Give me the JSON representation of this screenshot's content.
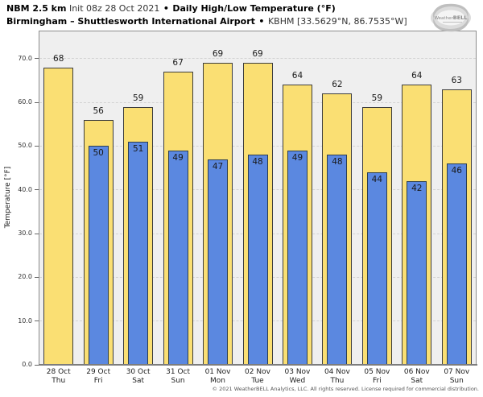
{
  "header": {
    "model": "NBM 2.5 km",
    "init": "Init 08z 28 Oct 2021",
    "sep": "•",
    "product": "Daily High/Low Temperature (°F)",
    "station": "Birmingham – Shuttlesworth International Airport",
    "code": "KBHM [33.5629°N, 86.7535°W]",
    "logo_text_small": "Weather",
    "logo_text_big": "BELL"
  },
  "chart_data": {
    "type": "bar",
    "title": "Daily High/Low Temperature (°F)",
    "subtitle": "Birmingham – Shuttlesworth International Airport • KBHM",
    "ylabel": "Temperature [°F]",
    "ylim": [
      0,
      76.4
    ],
    "grid": "horizontal-dashed",
    "legend": "none",
    "yticks": [
      {
        "v": 70,
        "label": "70.0"
      },
      {
        "v": 60,
        "label": "60.0"
      },
      {
        "v": 50,
        "label": "50.0"
      },
      {
        "v": 40,
        "label": "40.0"
      },
      {
        "v": 30,
        "label": "30.0"
      },
      {
        "v": 20,
        "label": "20.0"
      },
      {
        "v": 10,
        "label": "10.0"
      },
      {
        "v": 0,
        "label": "0.0"
      }
    ],
    "categories": [
      {
        "date": "28 Oct",
        "day": "Thu"
      },
      {
        "date": "29 Oct",
        "day": "Fri"
      },
      {
        "date": "30 Oct",
        "day": "Sat"
      },
      {
        "date": "31 Oct",
        "day": "Sun"
      },
      {
        "date": "01 Nov",
        "day": "Mon"
      },
      {
        "date": "02 Nov",
        "day": "Tue"
      },
      {
        "date": "03 Nov",
        "day": "Wed"
      },
      {
        "date": "04 Nov",
        "day": "Thu"
      },
      {
        "date": "05 Nov",
        "day": "Fri"
      },
      {
        "date": "06 Nov",
        "day": "Sat"
      },
      {
        "date": "07 Nov",
        "day": "Sun"
      }
    ],
    "series": [
      {
        "name": "Daily High",
        "color": "#fadf73",
        "border": "#3d3d3d",
        "values": [
          68,
          56,
          59,
          67,
          69,
          69,
          64,
          62,
          59,
          64,
          63
        ]
      },
      {
        "name": "Daily Low",
        "color": "#5b88e0",
        "border": "#2c3e50",
        "values": [
          null,
          50,
          51,
          49,
          47,
          48,
          49,
          48,
          44,
          42,
          46
        ]
      }
    ]
  },
  "footer": {
    "copyright": "© 2021 WeatherBELL Analytics, LLC. All rights reserved. License required for commercial distribution."
  }
}
